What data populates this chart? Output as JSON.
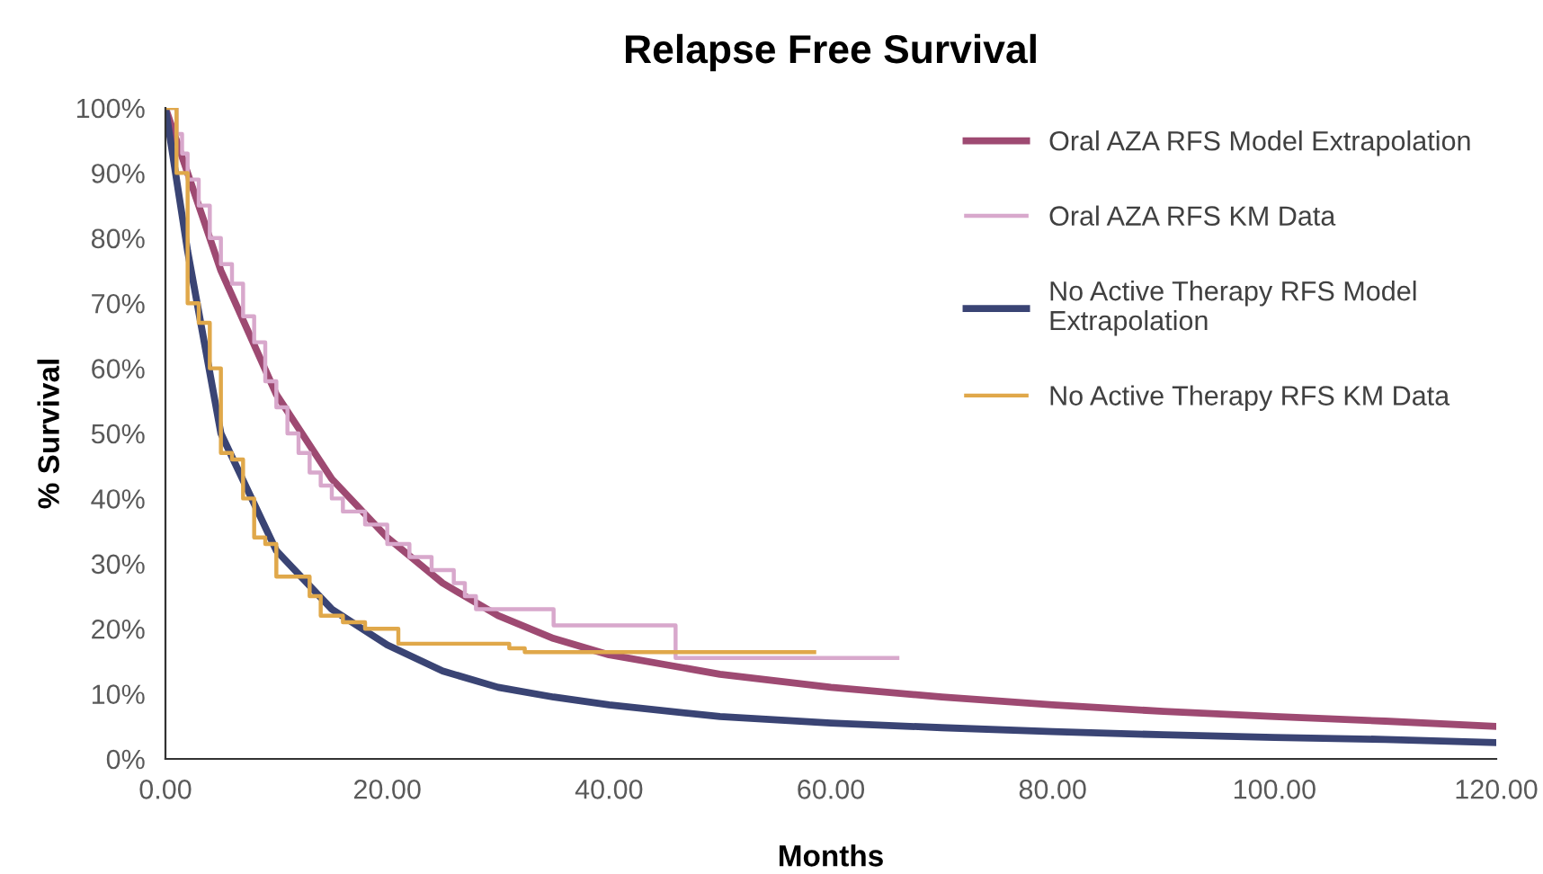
{
  "chart_data": {
    "type": "line",
    "title": "Relapse Free Survival",
    "xlabel": "Months",
    "ylabel": "% Survival",
    "xlim": [
      0,
      120
    ],
    "ylim": [
      0,
      100
    ],
    "grid": false,
    "legend": "right",
    "marker": "none",
    "xticks": [
      {
        "value": 0,
        "label": "0.00"
      },
      {
        "value": 20,
        "label": "20.00"
      },
      {
        "value": 40,
        "label": "40.00"
      },
      {
        "value": 60,
        "label": "60.00"
      },
      {
        "value": 80,
        "label": "80.00"
      },
      {
        "value": 100,
        "label": "100.00"
      },
      {
        "value": 120,
        "label": "120.00"
      }
    ],
    "yticks": [
      {
        "value": 0,
        "label": "0%"
      },
      {
        "value": 10,
        "label": "10%"
      },
      {
        "value": 20,
        "label": "20%"
      },
      {
        "value": 30,
        "label": "30%"
      },
      {
        "value": 40,
        "label": "40%"
      },
      {
        "value": 50,
        "label": "50%"
      },
      {
        "value": 60,
        "label": "60%"
      },
      {
        "value": 70,
        "label": "70%"
      },
      {
        "value": 80,
        "label": "80%"
      },
      {
        "value": 90,
        "label": "90%"
      },
      {
        "value": 100,
        "label": "100%"
      }
    ],
    "series": [
      {
        "name": "Oral AZA RFS Model Extrapolation",
        "color": "#9e4a72",
        "x": [
          0,
          2,
          5,
          10,
          15,
          20,
          25,
          30,
          35,
          40,
          45,
          50,
          60,
          70,
          80,
          90,
          100,
          110,
          120
        ],
        "values": [
          100,
          90,
          75,
          56,
          43,
          34,
          27,
          22,
          18.5,
          16,
          14.5,
          13,
          11,
          9.5,
          8.3,
          7.3,
          6.5,
          5.8,
          5
        ]
      },
      {
        "name": "Oral AZA RFS KM Data",
        "type": "step",
        "color": "#d8a8cc",
        "x": [
          0,
          1,
          1.5,
          2,
          3,
          4,
          5,
          6,
          7,
          8,
          9,
          10,
          11,
          12,
          13,
          14,
          15,
          16,
          18,
          20,
          22,
          24,
          26,
          27,
          28,
          35,
          46,
          66
        ],
        "values": [
          100,
          96,
          93,
          89,
          85,
          80,
          76,
          73,
          68,
          64,
          58,
          54,
          50,
          47,
          44,
          42,
          40,
          38,
          36,
          33,
          31,
          29,
          27,
          25,
          23,
          20.5,
          15.5,
          15.5
        ]
      },
      {
        "name": "No Active Therapy RFS Model\nExtrapolation",
        "color": "#3a4474",
        "x": [
          0,
          2,
          5,
          10,
          15,
          20,
          25,
          30,
          35,
          40,
          50,
          60,
          70,
          80,
          90,
          100,
          110,
          120
        ],
        "values": [
          100,
          78,
          50,
          32,
          23,
          17.5,
          13.5,
          11,
          9.5,
          8.3,
          6.5,
          5.5,
          4.8,
          4.2,
          3.7,
          3.3,
          3,
          2.5
        ]
      },
      {
        "name": "No Active Therapy RFS KM Data",
        "type": "step",
        "color": "#e0a84a",
        "x": [
          0,
          1,
          2,
          3,
          4,
          5,
          6,
          7,
          8,
          9,
          10,
          13,
          14,
          16,
          18,
          21,
          31,
          32.4,
          58.5
        ],
        "values": [
          100,
          90,
          70,
          67,
          60,
          47,
          46,
          40,
          34,
          33,
          28,
          25,
          22,
          21,
          20,
          17.7,
          17,
          16.4,
          16.4
        ]
      }
    ]
  }
}
